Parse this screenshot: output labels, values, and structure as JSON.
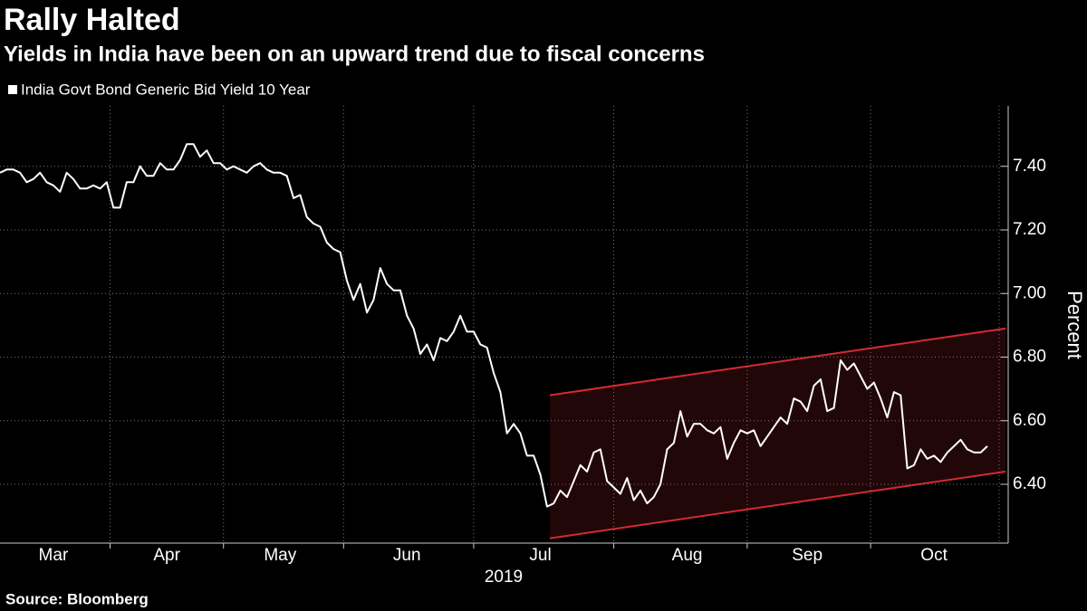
{
  "chart_data": {
    "type": "line",
    "title": "Rally Halted",
    "subtitle": "Yields in India have been on an upward trend due to fiscal concerns",
    "y_label": "Percent",
    "x_label": "2019",
    "source": "Source: Bloomberg",
    "categories": [
      null,
      null,
      null,
      null,
      null,
      null,
      null,
      null,
      "Mar",
      null,
      null,
      null,
      null,
      null,
      null,
      null,
      null,
      null,
      null,
      null,
      null,
      null,
      null,
      null,
      null,
      "Apr",
      null,
      null,
      null,
      null,
      null,
      null,
      null,
      null,
      null,
      null,
      null,
      null,
      null,
      null,
      null,
      null,
      "May",
      null,
      null,
      null,
      null,
      null,
      null,
      null,
      null,
      null,
      null,
      null,
      null,
      null,
      null,
      null,
      null,
      null,
      null,
      "Jun",
      null,
      null,
      null,
      null,
      null,
      null,
      null,
      null,
      null,
      null,
      null,
      null,
      null,
      null,
      null,
      null,
      null,
      null,
      null,
      "Jul",
      null,
      null,
      null,
      null,
      null,
      null,
      null,
      null,
      null,
      null,
      null,
      null,
      null,
      null,
      null,
      null,
      null,
      null,
      null,
      null,
      null,
      "Aug",
      null,
      null,
      null,
      null,
      null,
      null,
      null,
      null,
      null,
      null,
      null,
      null,
      null,
      null,
      null,
      null,
      null,
      "Sep",
      null,
      null,
      null,
      null,
      null,
      null,
      null,
      null,
      null,
      null,
      null,
      null,
      null,
      null,
      null,
      null,
      null,
      null,
      "Oct",
      null,
      null,
      null,
      null,
      null,
      null,
      null,
      null
    ],
    "series": [
      {
        "name": "India Govt Bond Generic Bid Yield 10 Year",
        "color": "#ffffff",
        "values": [
          7.38,
          7.39,
          7.39,
          7.38,
          7.35,
          7.36,
          7.38,
          7.35,
          7.34,
          7.32,
          7.38,
          7.36,
          7.33,
          7.33,
          7.34,
          7.33,
          7.35,
          7.27,
          7.27,
          7.35,
          7.35,
          7.4,
          7.37,
          7.37,
          7.41,
          7.39,
          7.39,
          7.42,
          7.47,
          7.47,
          7.43,
          7.45,
          7.41,
          7.41,
          7.39,
          7.4,
          7.39,
          7.38,
          7.4,
          7.41,
          7.39,
          7.38,
          7.38,
          7.37,
          7.3,
          7.31,
          7.24,
          7.22,
          7.21,
          7.16,
          7.14,
          7.13,
          7.04,
          6.98,
          7.03,
          6.94,
          6.98,
          7.08,
          7.03,
          7.01,
          7.01,
          6.93,
          6.89,
          6.81,
          6.84,
          6.79,
          6.86,
          6.85,
          6.88,
          6.93,
          6.88,
          6.88,
          6.84,
          6.83,
          6.75,
          6.69,
          6.56,
          6.59,
          6.56,
          6.49,
          6.49,
          6.43,
          6.33,
          6.34,
          6.38,
          6.36,
          6.41,
          6.46,
          6.44,
          6.5,
          6.51,
          6.41,
          6.39,
          6.37,
          6.42,
          6.35,
          6.38,
          6.34,
          6.36,
          6.4,
          6.51,
          6.53,
          6.63,
          6.55,
          6.59,
          6.59,
          6.57,
          6.56,
          6.58,
          6.48,
          6.53,
          6.57,
          6.56,
          6.57,
          6.52,
          6.55,
          6.58,
          6.61,
          6.59,
          6.67,
          6.66,
          6.63,
          6.71,
          6.73,
          6.63,
          6.64,
          6.79,
          6.76,
          6.78,
          6.74,
          6.7,
          6.72,
          6.67,
          6.61,
          6.69,
          6.68,
          6.45,
          6.46,
          6.51,
          6.48,
          6.49,
          6.47,
          6.5,
          6.52,
          6.54,
          6.51,
          6.5,
          6.5,
          6.52
        ]
      }
    ],
    "channel": {
      "upper": [
        6.68,
        6.89
      ],
      "lower": [
        6.23,
        6.44
      ],
      "color": "#d42a33"
    },
    "ylim": [
      6.215,
      7.59
    ],
    "yticks": [
      {
        "value": 6.4,
        "label": "6.40"
      },
      {
        "value": 6.6,
        "label": "6.60"
      },
      {
        "value": 6.8,
        "label": "6.80"
      },
      {
        "value": 7.0,
        "label": "7.00"
      },
      {
        "value": 7.2,
        "label": "7.20"
      },
      {
        "value": 7.4,
        "label": "7.40"
      }
    ],
    "grid": true
  }
}
